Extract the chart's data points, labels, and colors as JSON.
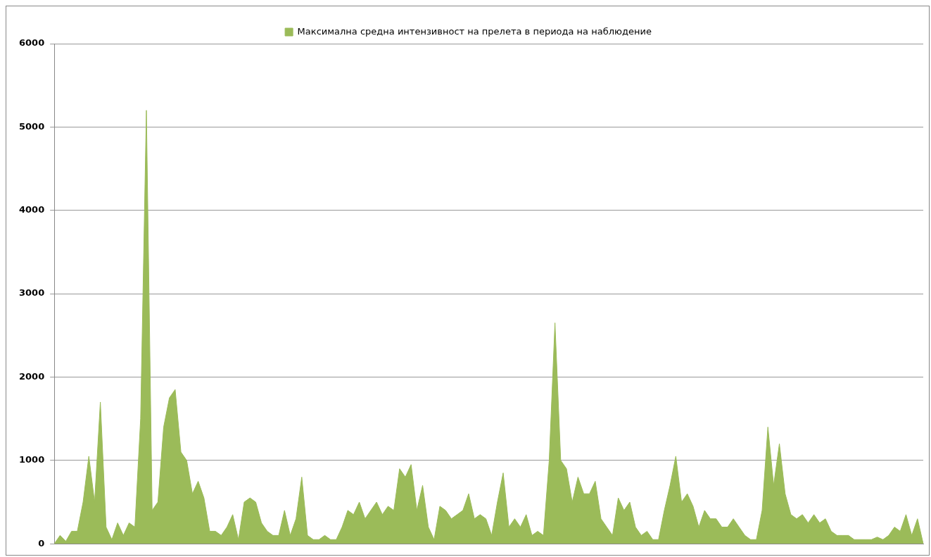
{
  "chart_data": {
    "type": "area",
    "categories": [
      null,
      null,
      null,
      null,
      null,
      null,
      null,
      null,
      null,
      null,
      null,
      null,
      null,
      null,
      null,
      null,
      null,
      null,
      null,
      null,
      null,
      null,
      null,
      null,
      null,
      null,
      null,
      null,
      null,
      null,
      null,
      null,
      null,
      null,
      null,
      null,
      null,
      null,
      null,
      null,
      null,
      null,
      null,
      null,
      null,
      null,
      null,
      null,
      null,
      null,
      null,
      null,
      null,
      null,
      null,
      null,
      null,
      null,
      null,
      null,
      null,
      null,
      null,
      null,
      null,
      null,
      null,
      null,
      null,
      null,
      null,
      null,
      null,
      null,
      null,
      null,
      null,
      null,
      null,
      null,
      null,
      null,
      null,
      null,
      null,
      null,
      null,
      null,
      null,
      null,
      null,
      null,
      null,
      null,
      null,
      null,
      null,
      null,
      null,
      null,
      null,
      null,
      null,
      null,
      null,
      null,
      null,
      null,
      null,
      null,
      null,
      null,
      null,
      null,
      null,
      null,
      null,
      null,
      null,
      null,
      null,
      null,
      null,
      null,
      null,
      null,
      null,
      null,
      null,
      null,
      null,
      null,
      null,
      null,
      null,
      null,
      null,
      null,
      null,
      null,
      null,
      null,
      null,
      null,
      null,
      null,
      null,
      null,
      null,
      null,
      null,
      null
    ],
    "series": [
      {
        "name": "Максимална средна интензивност на прелета в периода на наблюдение",
        "color": "#9bbb59",
        "values": [
          0,
          100,
          30,
          150,
          150,
          500,
          1050,
          500,
          1700,
          200,
          50,
          250,
          100,
          250,
          200,
          1500,
          5200,
          400,
          500,
          1400,
          1750,
          1850,
          1100,
          1000,
          600,
          750,
          550,
          150,
          150,
          100,
          200,
          350,
          50,
          500,
          550,
          500,
          250,
          150,
          100,
          100,
          400,
          100,
          300,
          800,
          100,
          50,
          50,
          100,
          50,
          50,
          200,
          400,
          350,
          500,
          300,
          400,
          500,
          350,
          450,
          400,
          900,
          800,
          950,
          400,
          700,
          200,
          50,
          450,
          400,
          300,
          350,
          400,
          600,
          300,
          350,
          300,
          100,
          500,
          850,
          200,
          300,
          200,
          350,
          100,
          150,
          100,
          1000,
          2650,
          1000,
          900,
          500,
          800,
          600,
          600,
          750,
          300,
          200,
          100,
          550,
          400,
          500,
          200,
          100,
          150,
          50,
          50,
          400,
          700,
          1050,
          500,
          600,
          450,
          200,
          400,
          300,
          300,
          200,
          200,
          300,
          200,
          100,
          50,
          50,
          400,
          1400,
          700,
          1200,
          600,
          350,
          300,
          350,
          250,
          350,
          250,
          300,
          150,
          100,
          100,
          100,
          50,
          50,
          50,
          50,
          80,
          50,
          100,
          200,
          150,
          350,
          100,
          300,
          0
        ]
      }
    ],
    "ylim": [
      0,
      6000
    ],
    "yticks": [
      0,
      1000,
      2000,
      3000,
      4000,
      5000,
      6000
    ],
    "grid": "y",
    "legend": "top",
    "tick_labels": "y"
  }
}
